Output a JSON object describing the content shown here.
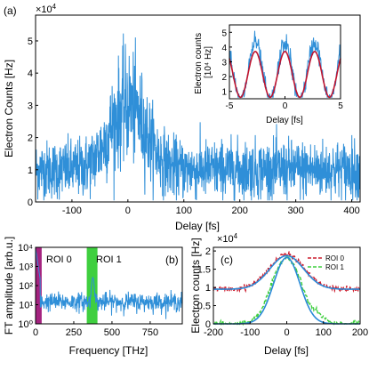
{
  "panel_labels": {
    "a": "(a)",
    "b": "(b)",
    "c": "(c)"
  },
  "colors": {
    "trace": "#2f8fd8",
    "fit_red": "#c0142f",
    "roi0": "#a4237f",
    "roi1": "#3fcf3f",
    "c_fit": "#2a8ad8",
    "c_roi0": "#cc1a2c",
    "c_roi1": "#3fcf3f"
  },
  "chart_data": [
    {
      "id": "a",
      "type": "line",
      "xlabel": "Delay [fs]",
      "ylabel": "Electron Counts [Hz]",
      "y_exponent": "x10^4",
      "xlim": [
        -165,
        415
      ],
      "ylim": [
        0,
        5.8
      ],
      "xticks": [
        -100,
        0,
        100,
        200,
        300,
        400
      ],
      "yticks": [
        0,
        1,
        2,
        3,
        4,
        5
      ],
      "xtick_labels": [
        "-100",
        "0",
        "100",
        "200",
        "300",
        "400"
      ],
      "ytick_labels": [
        "0",
        "1",
        "2",
        "3",
        "4",
        "5"
      ],
      "series": [
        {
          "style": "noisy-trace",
          "baseline": 1.0,
          "noise": 0.45,
          "peak": {
            "center": 0,
            "width": 32,
            "height": 2.0
          }
        }
      ]
    },
    {
      "id": "a-inset",
      "type": "line",
      "xlabel": "Delay [fs]",
      "ylabel": "Electron counts [10^4 Hz]",
      "ylabel_lines": [
        "Electron counts",
        "[10⁴ Hz]"
      ],
      "xlim": [
        -5,
        5
      ],
      "ylim": [
        0.5,
        5.5
      ],
      "xticks": [
        -5,
        0,
        5
      ],
      "yticks": [
        1,
        2,
        3,
        4,
        5
      ],
      "xtick_labels": [
        "-5",
        "0",
        "5"
      ],
      "ytick_labels": [
        "1",
        "2",
        "3",
        "4",
        "5"
      ],
      "series": [
        {
          "style": "noisy-trace",
          "period": 2.67,
          "mean": 2.3,
          "amplitude": 2.0
        },
        {
          "style": "fit",
          "period": 2.67,
          "mean": 2.15,
          "amplitude": 1.55
        }
      ]
    },
    {
      "id": "b",
      "type": "line",
      "xlabel": "Frequency [THz]",
      "ylabel": "FT amplitude [arb.u.]",
      "yscale": "log",
      "xlim": [
        0,
        960
      ],
      "ylim": [
        1,
        10000
      ],
      "xticks": [
        0,
        250,
        500,
        750
      ],
      "yticks": [
        1,
        10,
        100,
        1000,
        10000
      ],
      "xtick_labels": [
        "0",
        "250",
        "500",
        "750"
      ],
      "ytick_labels": [
        "10⁰",
        "10¹",
        "10²",
        "10³",
        "10⁴"
      ],
      "regions": [
        {
          "name": "ROI 0",
          "x": [
            0,
            40
          ]
        },
        {
          "name": "ROI 1",
          "x": [
            335,
            405
          ]
        }
      ],
      "series": [
        {
          "style": "noisy-spectrum",
          "baseline": 14,
          "peak": {
            "center": 375,
            "height": 250
          }
        }
      ]
    },
    {
      "id": "c",
      "type": "line",
      "xlabel": "Delay [fs]",
      "ylabel": "Electron counts [Hz]",
      "y_exponent": "x10^4",
      "xlim": [
        -200,
        200
      ],
      "ylim": [
        0,
        2.1
      ],
      "xticks": [
        -200,
        -100,
        0,
        100,
        200
      ],
      "yticks": [
        0,
        0.5,
        1,
        1.5,
        2
      ],
      "xtick_labels": [
        "-200",
        "-100",
        "0",
        "100",
        "200"
      ],
      "ytick_labels": [
        "0",
        "0.5",
        "1",
        "1.5",
        "2"
      ],
      "legend": [
        "ROI 0",
        "ROI 1"
      ],
      "legend_position": "top-right",
      "series": [
        {
          "name": "ROI 0",
          "style": "dashed",
          "baseline": 0.95,
          "peak": {
            "center": 0,
            "width": 48,
            "height": 0.95
          }
        },
        {
          "name": "ROI 1",
          "style": "dashed",
          "baseline": 0.0,
          "peak": {
            "center": 0,
            "width": 40,
            "height": 1.83
          }
        },
        {
          "style": "fit",
          "baseline": 0.95,
          "peak": {
            "center": 0,
            "width": 46,
            "height": 0.92
          }
        },
        {
          "style": "fit",
          "baseline": 0.0,
          "peak": {
            "center": 0,
            "width": 36,
            "height": 1.82
          }
        }
      ]
    }
  ]
}
